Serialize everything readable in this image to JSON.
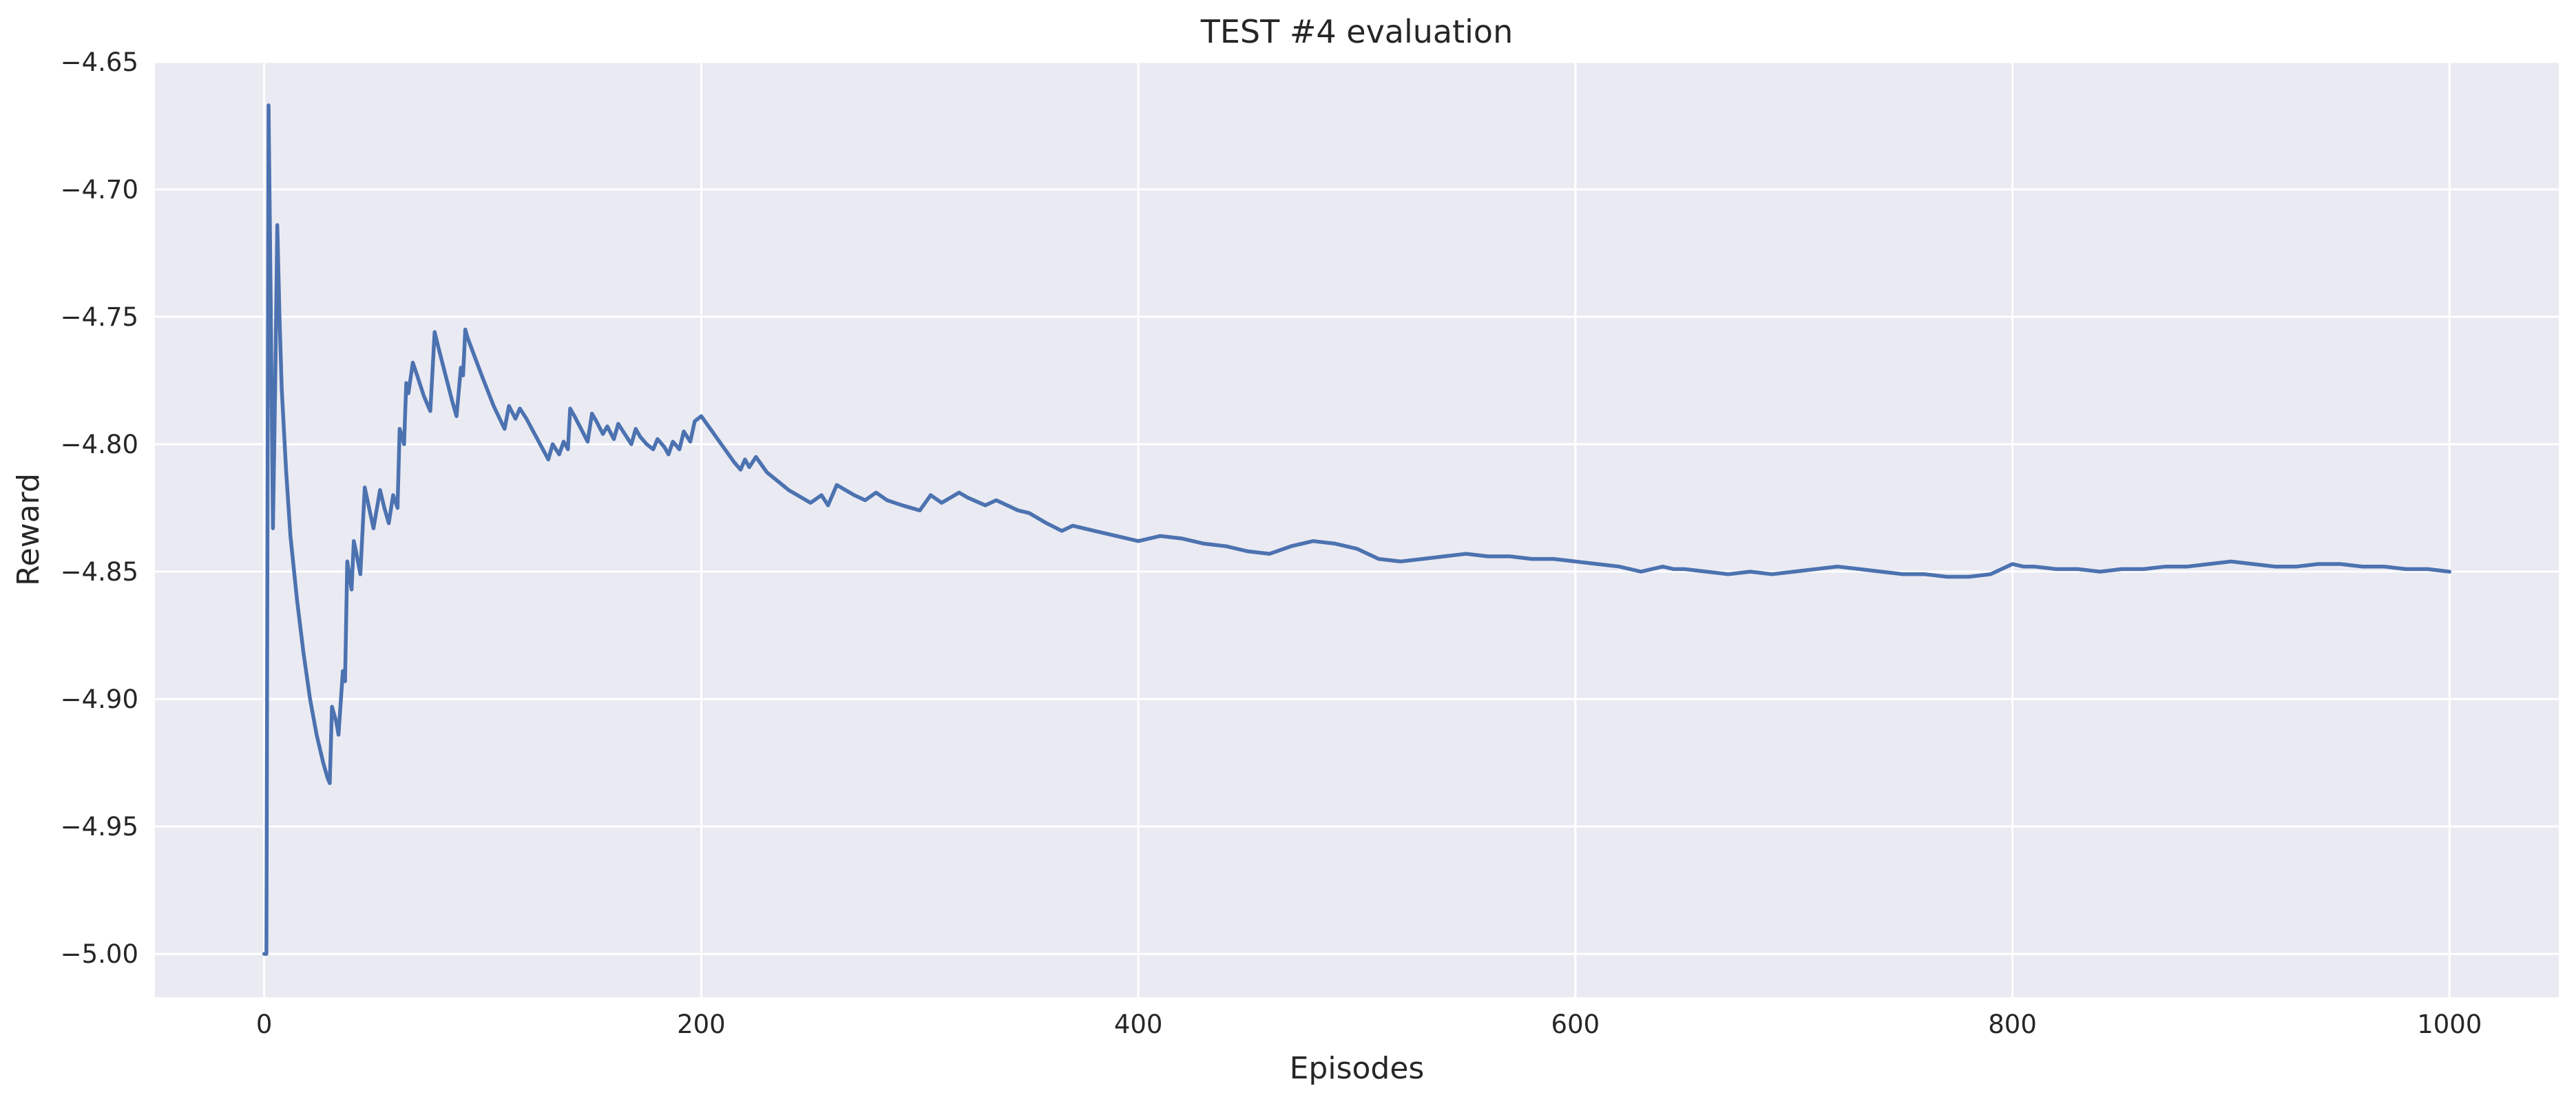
{
  "chart_data": {
    "type": "line",
    "title": "TEST #4 evaluation",
    "xlabel": "Episodes",
    "ylabel": "Reward",
    "xlim": [
      -50,
      1050
    ],
    "ylim": [
      -5.017,
      -4.65
    ],
    "xticks": [
      0,
      200,
      400,
      600,
      800,
      1000
    ],
    "xtick_labels": [
      "0",
      "200",
      "400",
      "600",
      "800",
      "1000"
    ],
    "yticks": [
      -5.0,
      -4.95,
      -4.9,
      -4.85,
      -4.8,
      -4.75,
      -4.7,
      -4.65
    ],
    "ytick_labels": [
      "−5.00",
      "−4.95",
      "−4.90",
      "−4.85",
      "−4.80",
      "−4.75",
      "−4.70",
      "−4.65"
    ],
    "grid": true,
    "background": "#eaeaf2",
    "grid_color": "#ffffff",
    "series": [
      {
        "color": "#4c72b0",
        "x": [
          0,
          1,
          2,
          3,
          4,
          5,
          6,
          7,
          8,
          10,
          12,
          15,
          18,
          21,
          24,
          27,
          29,
          30,
          31,
          33,
          34,
          36,
          37,
          38,
          40,
          41,
          42,
          44,
          46,
          48,
          50,
          53,
          55,
          57,
          59,
          61,
          62,
          64,
          65,
          66,
          68,
          70,
          73,
          76,
          78,
          80,
          83,
          86,
          88,
          90,
          91,
          92,
          93,
          96,
          100,
          105,
          110,
          112,
          115,
          117,
          120,
          125,
          130,
          132,
          135,
          137,
          139,
          140,
          142,
          145,
          148,
          150,
          152,
          155,
          157,
          160,
          162,
          165,
          168,
          170,
          172,
          175,
          178,
          180,
          183,
          185,
          187,
          190,
          192,
          195,
          197,
          200,
          205,
          210,
          215,
          218,
          220,
          222,
          225,
          230,
          240,
          250,
          255,
          258,
          262,
          270,
          275,
          280,
          285,
          292,
          300,
          305,
          310,
          318,
          322,
          330,
          335,
          340,
          345,
          350,
          358,
          365,
          370,
          380,
          390,
          400,
          410,
          420,
          430,
          440,
          450,
          460,
          470,
          480,
          490,
          500,
          510,
          520,
          530,
          540,
          550,
          560,
          570,
          580,
          590,
          600,
          610,
          620,
          630,
          640,
          645,
          650,
          660,
          670,
          680,
          690,
          700,
          710,
          720,
          730,
          740,
          750,
          760,
          770,
          780,
          790,
          800,
          805,
          810,
          820,
          830,
          840,
          850,
          860,
          870,
          880,
          890,
          900,
          910,
          920,
          930,
          940,
          950,
          960,
          970,
          980,
          990,
          1000
        ],
        "y": [
          -5.0,
          -5.0,
          -4.667,
          -4.745,
          -4.833,
          -4.778,
          -4.714,
          -4.75,
          -4.778,
          -4.81,
          -4.836,
          -4.861,
          -4.882,
          -4.9,
          -4.914,
          -4.925,
          -4.931,
          -4.933,
          -4.903,
          -4.909,
          -4.914,
          -4.889,
          -4.893,
          -4.846,
          -4.857,
          -4.838,
          -4.842,
          -4.851,
          -4.817,
          -4.825,
          -4.833,
          -4.818,
          -4.825,
          -4.831,
          -4.82,
          -4.825,
          -4.794,
          -4.8,
          -4.776,
          -4.78,
          -4.768,
          -4.773,
          -4.781,
          -4.787,
          -4.756,
          -4.763,
          -4.773,
          -4.783,
          -4.789,
          -4.77,
          -4.773,
          -4.755,
          -4.758,
          -4.765,
          -4.774,
          -4.785,
          -4.794,
          -4.785,
          -4.79,
          -4.786,
          -4.79,
          -4.798,
          -4.806,
          -4.8,
          -4.804,
          -4.799,
          -4.802,
          -4.786,
          -4.789,
          -4.794,
          -4.799,
          -4.788,
          -4.791,
          -4.796,
          -4.793,
          -4.798,
          -4.792,
          -4.796,
          -4.8,
          -4.794,
          -4.797,
          -4.8,
          -4.802,
          -4.798,
          -4.801,
          -4.804,
          -4.799,
          -4.802,
          -4.795,
          -4.799,
          -4.791,
          -4.789,
          -4.795,
          -4.801,
          -4.807,
          -4.81,
          -4.806,
          -4.809,
          -4.805,
          -4.811,
          -4.818,
          -4.823,
          -4.82,
          -4.824,
          -4.816,
          -4.82,
          -4.822,
          -4.819,
          -4.822,
          -4.824,
          -4.826,
          -4.82,
          -4.823,
          -4.819,
          -4.821,
          -4.824,
          -4.822,
          -4.824,
          -4.826,
          -4.827,
          -4.831,
          -4.834,
          -4.832,
          -4.834,
          -4.836,
          -4.838,
          -4.836,
          -4.837,
          -4.839,
          -4.84,
          -4.842,
          -4.843,
          -4.84,
          -4.838,
          -4.839,
          -4.841,
          -4.845,
          -4.846,
          -4.845,
          -4.844,
          -4.843,
          -4.844,
          -4.844,
          -4.845,
          -4.845,
          -4.846,
          -4.847,
          -4.848,
          -4.85,
          -4.848,
          -4.849,
          -4.849,
          -4.85,
          -4.851,
          -4.85,
          -4.851,
          -4.85,
          -4.849,
          -4.848,
          -4.849,
          -4.85,
          -4.851,
          -4.851,
          -4.852,
          -4.852,
          -4.851,
          -4.847,
          -4.848,
          -4.848,
          -4.849,
          -4.849,
          -4.85,
          -4.849,
          -4.849,
          -4.848,
          -4.848,
          -4.847,
          -4.846,
          -4.847,
          -4.848,
          -4.848,
          -4.847,
          -4.847,
          -4.848,
          -4.848,
          -4.849,
          -4.849,
          -4.85
        ]
      }
    ]
  }
}
